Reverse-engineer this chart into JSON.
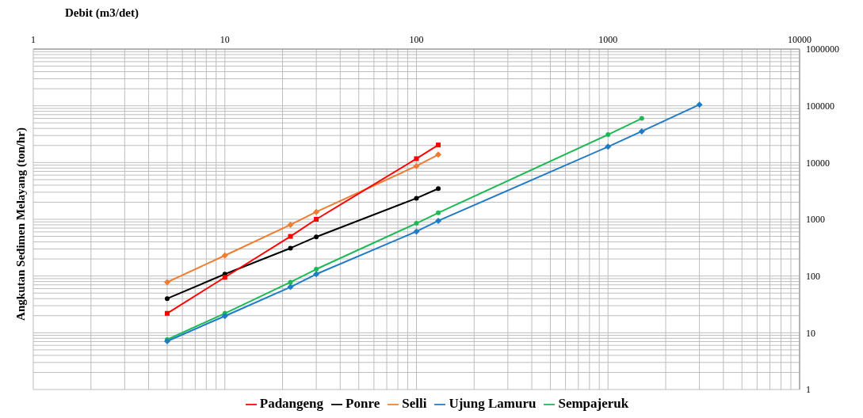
{
  "chart_data": {
    "type": "line",
    "xlabel": "Debit (m3/det)",
    "ylabel": "Angkutan Sedimen Melayang (ton/hr)",
    "log": "xy",
    "grid": true,
    "legend": "bottom",
    "xlim": [
      1,
      10000
    ],
    "xticks": [
      1,
      10,
      100,
      1000,
      10000
    ],
    "ylim": [
      1,
      1000000
    ],
    "yticks": [
      1,
      10,
      100,
      1000,
      10000,
      100000,
      1000000
    ],
    "series": [
      {
        "name": "Padangeng",
        "color": "#ff0000",
        "marker": "square",
        "x": [
          5,
          10,
          22,
          30,
          100,
          130
        ],
        "values": [
          22,
          95,
          500,
          1000,
          11700,
          20400
        ]
      },
      {
        "name": "Ponre",
        "color": "#000000",
        "marker": "circle",
        "x": [
          5,
          10,
          22,
          30,
          100,
          130
        ],
        "values": [
          40,
          108,
          310,
          490,
          2350,
          3470
        ]
      },
      {
        "name": "Selli",
        "color": "#ed7d31",
        "marker": "diamond",
        "x": [
          5,
          10,
          22,
          30,
          100,
          130
        ],
        "values": [
          78,
          230,
          800,
          1350,
          8700,
          13800
        ]
      },
      {
        "name": "Ujung Lamuru",
        "color": "#1f7bc6",
        "marker": "diamond",
        "x": [
          5,
          10,
          22,
          30,
          100,
          130,
          1000,
          1500,
          3000
        ],
        "values": [
          7.1,
          19.7,
          64,
          108,
          610,
          940,
          19000,
          35500,
          105000
        ]
      },
      {
        "name": "Sempajeruk",
        "color": "#1db954",
        "marker": "circle",
        "x": [
          5,
          10,
          22,
          30,
          100,
          130,
          1000,
          1500
        ],
        "values": [
          7.6,
          22,
          78,
          132,
          850,
          1300,
          31000,
          60000
        ]
      }
    ]
  }
}
